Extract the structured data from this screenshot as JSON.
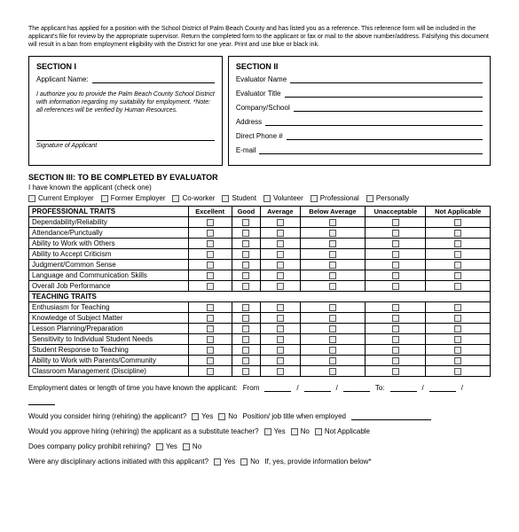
{
  "disclaimer": "The applicant has applied for a position with the School District of Palm Beach County and has listed you as a reference. This reference form will be included in the applicant's file for review by the appropriate supervisor. Return the completed form to the applicant or fax or mail to the above number/address. Falsifying this document will result in a ban from employment eligibility with the District for one year. Print and use blue or black ink.",
  "section1": {
    "title": "SECTION I",
    "applicant_label": "Applicant Name:",
    "auth_note": "I authorize you to provide the Palm Beach County School District with information regarding my suitability for employment. *Note: all references will be verified by Human Resources.",
    "sig_label": "Signature of Applicant"
  },
  "section2": {
    "title": "SECTION II",
    "fields": [
      "Evaluator Name",
      "Evaluator Title",
      "Company/School",
      "Address",
      "Direct Phone #",
      "E-mail"
    ]
  },
  "section3": {
    "title": "SECTION III: TO BE COMPLETED BY EVALUATOR",
    "known_text": "I have known the applicant (check one)",
    "relations": [
      "Current Employer",
      "Former Employer",
      "Co-worker",
      "Student",
      "Volunteer",
      "Professional",
      "Personally"
    ]
  },
  "ratings": {
    "columns": [
      "Excellent",
      "Good",
      "Average",
      "Below Average",
      "Unacceptable",
      "Not Applicable"
    ],
    "prof_header": "PROFESSIONAL TRAITS",
    "prof_rows": [
      "Dependability/Reliability",
      "Attendance/Punctually",
      "Ability to Work with Others",
      "Ability to Accept Criticism",
      "Judgment/Common Sense",
      "Language and Communication Skills",
      "Overall Job Performance"
    ],
    "teach_header": "TEACHING TRAITS",
    "teach_rows": [
      "Enthusiasm for Teaching",
      "Knowledge of Subject Matter",
      "Lesson Planning/Preparation",
      "Sensitivity to Individual Student Needs",
      "Student Response to Teaching",
      "Ability to Work with Parents/Community",
      "Classroom Management (Discipline)"
    ]
  },
  "bottom": {
    "q_dates": "Employment dates or length of time you have known the applicant:",
    "from": "From",
    "to": "To:",
    "q_hire": "Would you consider hiring (rehiring) the applicant?",
    "q_position": "Position/ job title when employed",
    "q_sub": "Would you approve hiring (rehiring) the applicant as a substitute teacher?",
    "q_policy": "Does company policy prohibit rehiring?",
    "q_disc": "Were any disciplinary actions initiated with this applicant?",
    "q_disc_suffix": "If, yes, provide information below*",
    "yes": "Yes",
    "no": "No",
    "na": "Not Applicable"
  }
}
